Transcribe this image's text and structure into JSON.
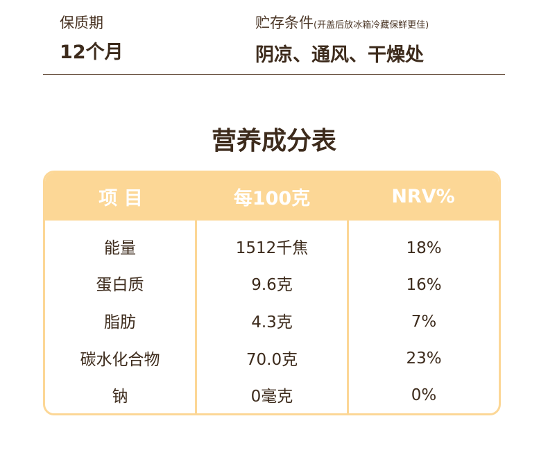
{
  "shelf_life": {
    "label": "保质期",
    "value": "12个月"
  },
  "storage": {
    "label": "贮存条件",
    "note": "(开盖后放冰箱冷藏保鲜更佳)",
    "value": "阴凉、通风、干燥处"
  },
  "nutrition": {
    "title": "营养成分表",
    "headers": [
      "项 目",
      "每100克",
      "NRV%"
    ],
    "rows": [
      {
        "item": "能量",
        "per100g": "1512千焦",
        "nrv": "18%"
      },
      {
        "item": "蛋白质",
        "per100g": "9.6克",
        "nrv": "16%"
      },
      {
        "item": "脂肪",
        "per100g": "4.3克",
        "nrv": "7%"
      },
      {
        "item": "碳水化合物",
        "per100g": "70.0克",
        "nrv": "23%"
      },
      {
        "item": "钠",
        "per100g": "0毫克",
        "nrv": "0%"
      }
    ]
  },
  "colors": {
    "accent": "#fcd796",
    "text": "#3d2b1c"
  }
}
